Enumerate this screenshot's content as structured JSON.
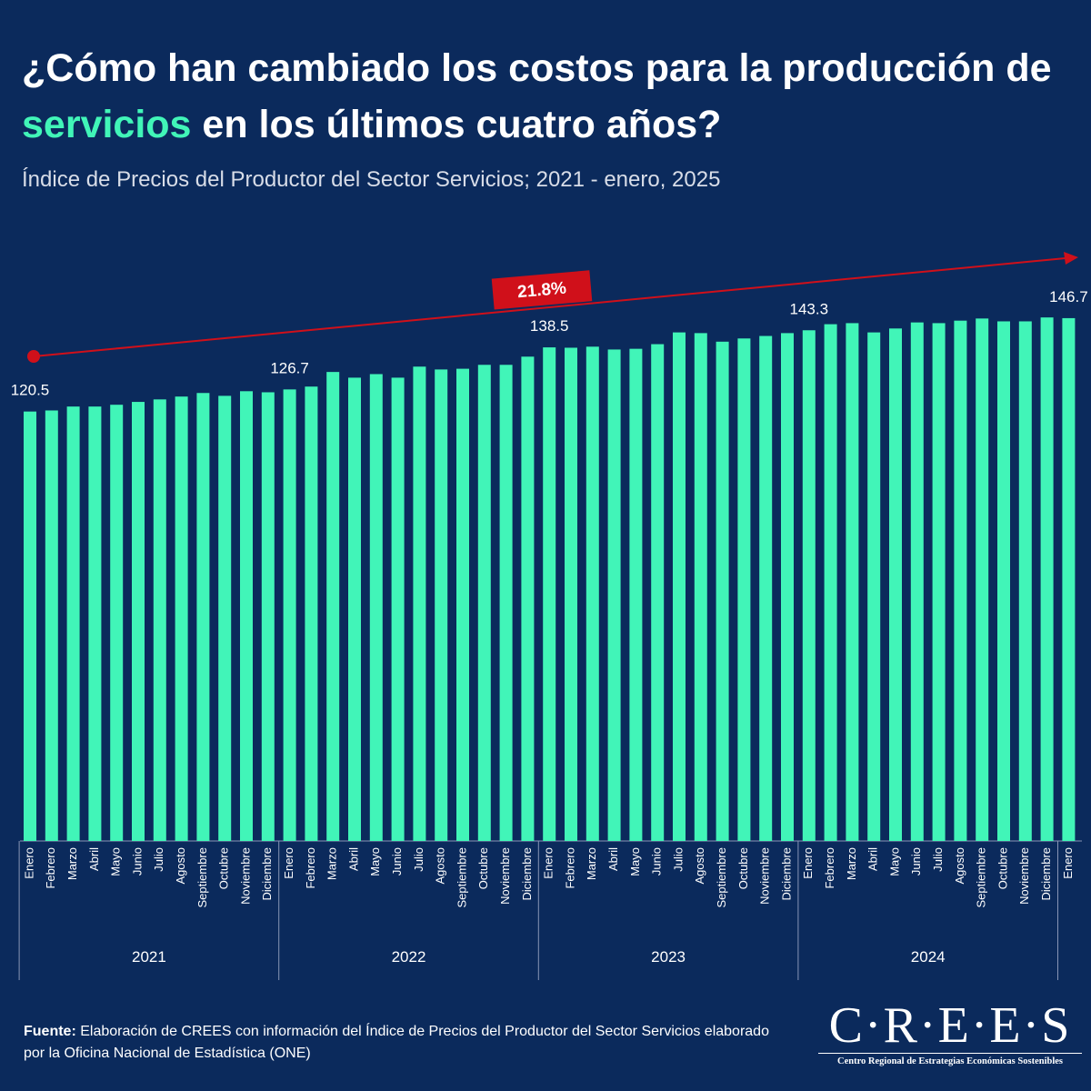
{
  "chart_data": {
    "type": "bar",
    "title": [
      "¿Cómo han cambiado los costos para la producción de ",
      "servicios",
      " en los últimos cuatro años?"
    ],
    "subtitle": "Índice de Precios del Productor del Sector Servicios; 2021 - enero, 2025",
    "annotation": "21.8%",
    "categories": [
      "Enero",
      "Febrero",
      "Marzo",
      "Abril",
      "Mayo",
      "Junio",
      "Julio",
      "Agosto",
      "Septiembre",
      "Octubre",
      "Noviembre",
      "Diciembre",
      "Enero",
      "Febrero",
      "Marzo",
      "Abril",
      "Mayo",
      "Junio",
      "Julio",
      "Agosto",
      "Septiembre",
      "Octubre",
      "Noviembre",
      "Diciembre",
      "Enero",
      "Febrero",
      "Marzo",
      "Abril",
      "Mayo",
      "Junio",
      "Julio",
      "Agosto",
      "Septiembre",
      "Octubre",
      "Noviembre",
      "Diciembre",
      "Enero",
      "Febrero",
      "Marzo",
      "Abril",
      "Mayo",
      "Junio",
      "Julio",
      "Agosto",
      "Septiembre",
      "Octubre",
      "Noviembre",
      "Diciembre",
      "Enero"
    ],
    "category_groups": [
      "2021",
      "2022",
      "2023",
      "2024"
    ],
    "series": [
      {
        "color": "#41f5b8",
        "values": [
          120.5,
          120.8,
          121.9,
          121.9,
          122.4,
          123.2,
          123.9,
          124.7,
          125.7,
          124.9,
          126.2,
          125.9,
          126.7,
          127.5,
          131.6,
          130.0,
          131.0,
          130.0,
          133.1,
          132.3,
          132.5,
          133.6,
          133.6,
          135.9,
          138.5,
          138.4,
          138.7,
          137.9,
          138.1,
          139.4,
          142.7,
          142.5,
          140.1,
          141.0,
          141.7,
          142.5,
          143.3,
          145.0,
          145.3,
          142.7,
          143.8,
          145.5,
          145.3,
          146.0,
          146.6,
          145.8,
          145.8,
          146.9,
          146.7
        ],
        "value_labels": [
          "120.5",
          null,
          null,
          null,
          null,
          null,
          null,
          null,
          null,
          null,
          null,
          null,
          "126.7",
          null,
          null,
          null,
          null,
          null,
          null,
          null,
          null,
          null,
          null,
          null,
          "138.5",
          null,
          null,
          null,
          null,
          null,
          null,
          null,
          null,
          null,
          null,
          null,
          "143.3",
          null,
          null,
          null,
          null,
          null,
          null,
          null,
          null,
          null,
          null,
          null,
          "146.7"
        ]
      }
    ]
  },
  "footer": {
    "source_label": "Fuente:",
    "source_text": " Elaboración de CREES con información del Índice de Precios del Productor del Sector Servicios elaborado por la Oficina Nacional de Estadística (ONE)",
    "logo": "C·R·E·E·S",
    "logo_subtitle": "Centro Regional de Estrategias Económicas Sostenibles"
  }
}
